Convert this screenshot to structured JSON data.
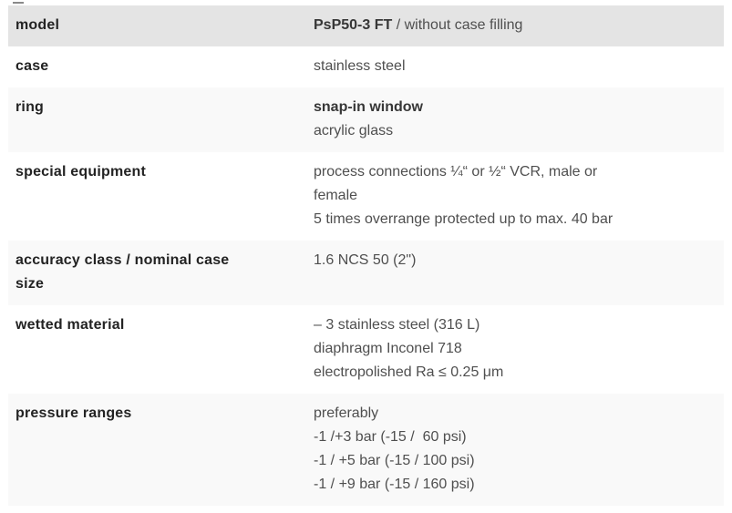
{
  "colors": {
    "header_row_bg": "#e4e4e4",
    "stripe_row_bg": "#f9f9f9",
    "white_row_bg": "#ffffff",
    "label_text": "#232323",
    "value_text": "#4f4f4f",
    "value_emphasis_text": "#373737"
  },
  "table": {
    "rows": [
      {
        "bg": "header",
        "label_lines": [
          "model"
        ],
        "value_lines": [
          [
            {
              "t": "PsP50-3 FT",
              "em": true
            },
            {
              "t": " / without case filling",
              "em": false
            }
          ]
        ]
      },
      {
        "bg": "white",
        "label_lines": [
          "case"
        ],
        "value_lines": [
          [
            {
              "t": "stainless steel",
              "em": false
            }
          ]
        ]
      },
      {
        "bg": "stripe",
        "label_lines": [
          "ring"
        ],
        "value_lines": [
          [
            {
              "t": "snap-in window",
              "em": true
            }
          ],
          [
            {
              "t": "acrylic glass",
              "em": false
            }
          ]
        ]
      },
      {
        "bg": "white",
        "label_lines": [
          "special equipment"
        ],
        "value_lines": [
          [
            {
              "t": "process connections ¼“ or ½“ VCR, male or",
              "em": false
            }
          ],
          [
            {
              "t": "female",
              "em": false
            }
          ],
          [
            {
              "t": "5 times overrange protected up to max. 40 bar",
              "em": false
            }
          ]
        ]
      },
      {
        "bg": "stripe",
        "label_lines": [
          "accuracy class / nominal case",
          "size"
        ],
        "value_lines": [
          [
            {
              "t": "1.6 NCS 50 (2\")",
              "em": false
            }
          ]
        ]
      },
      {
        "bg": "white",
        "label_lines": [
          "wetted material"
        ],
        "value_lines": [
          [
            {
              "t": "– 3 stainless steel (316 L)",
              "em": false
            }
          ],
          [
            {
              "t": "diaphragm Inconel 718",
              "em": false
            }
          ],
          [
            {
              "t": "electropolished Ra ≤ 0.25 μm",
              "em": false
            }
          ]
        ]
      },
      {
        "bg": "stripe",
        "label_lines": [
          "pressure ranges"
        ],
        "value_lines": [
          [
            {
              "t": "preferably",
              "em": false
            }
          ],
          [
            {
              "t": "-1 /+3 bar (-15 /  60 psi)",
              "em": false
            }
          ],
          [
            {
              "t": "-1 / +5 bar (-15 / 100 psi)",
              "em": false
            }
          ],
          [
            {
              "t": "-1 / +9 bar (-15 / 160 psi)",
              "em": false
            }
          ]
        ]
      }
    ]
  }
}
